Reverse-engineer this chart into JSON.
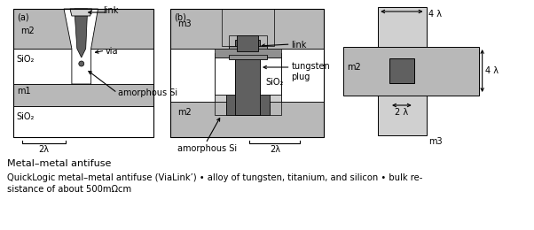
{
  "fig_width": 6.02,
  "fig_height": 2.6,
  "dpi": 100,
  "bg_color": "#ffffff",
  "light_gray": "#b8b8b8",
  "light_gray2": "#d0d0d0",
  "medium_gray": "#909090",
  "dark_gray": "#606060",
  "white": "#ffffff",
  "black": "#000000",
  "label_a": "(a)",
  "label_b": "(b)",
  "text_link_a": "link",
  "text_via": "via",
  "text_m1": "m1",
  "text_m2_a": "m2",
  "text_m2_b": "m2",
  "text_m3": "m3",
  "text_sio2_a": "SiO₂",
  "text_sio2_b": "SiO₂",
  "text_sio2_c": "SiO₂",
  "text_amorphous_a": "amorphous Si",
  "text_amorphous_b": "amorphous Si",
  "text_2lambda_a": "2λ",
  "text_2lambda_b": "2λ",
  "text_4lambda_top": "4 λ",
  "text_4lambda_right": "4 λ",
  "text_2lambda_c": "2 λ",
  "text_tungsten": "tungsten\nplug",
  "text_link_b": "link",
  "text_m2_c": "m2",
  "text_m3_c": "m3",
  "text_bottom1": "Metal–metal antifuse",
  "text_bottom2": "QuickLogic metal–metal antifuse (ViaLink’) • alloy of tungsten, titanium, and silicon • bulk re-\nsistance of about 500mΩcm"
}
